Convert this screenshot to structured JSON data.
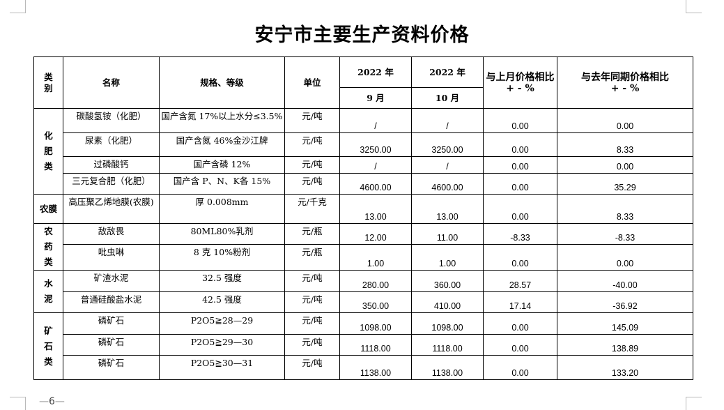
{
  "page_title": "安宁市主要生产资料价格",
  "page_number": "6",
  "headers": {
    "category": "类别",
    "name": "名称",
    "spec": "规格、等级",
    "unit": "单位",
    "year1": "2022 年",
    "year2": "2022 年",
    "month1": "9 月",
    "month2": "10 月",
    "mom_line1": "与上月价格相比",
    "mom_line2": "+ - %",
    "yoy_line1": "与去年同期价格相比",
    "yoy_line2": "+ - %"
  },
  "categories": [
    {
      "label": "化肥类",
      "rows": [
        {
          "name": "碳酸氢铵（化肥）",
          "spec": "国产含氮 17%以上水分≤3.5%",
          "unit": "元/吨",
          "sep": "/",
          "oct": "/",
          "mom": "0.00",
          "yoy": "0.00"
        },
        {
          "name": "尿素（化肥）",
          "spec": "国产含氮 46%金沙江牌",
          "unit": "元/吨",
          "sep": "3250.00",
          "oct": "3250.00",
          "mom": "0.00",
          "yoy": "8.33"
        },
        {
          "name": "过磷酸钙",
          "spec": "国产含磷 12%",
          "unit": "元/吨",
          "sep": "/",
          "oct": "/",
          "mom": "0.00",
          "yoy": "0.00"
        },
        {
          "name": "三元复合肥（化肥）",
          "spec": "国产含 P、N、K各 15%",
          "unit": "元/吨",
          "sep": "4600.00",
          "oct": "4600.00",
          "mom": "0.00",
          "yoy": "35.29"
        }
      ]
    },
    {
      "label": "农膜",
      "rows": [
        {
          "name": "高压聚乙烯地膜(农膜)",
          "spec": "厚 0.008mm",
          "unit": "元/千克",
          "sep": "13.00",
          "oct": "13.00",
          "mom": "0.00",
          "yoy": "8.33"
        }
      ]
    },
    {
      "label": "农药类",
      "rows": [
        {
          "name": "敌敌畏",
          "spec": "80ML80%乳剂",
          "unit": "元/瓶",
          "sep": "12.00",
          "oct": "11.00",
          "mom": "-8.33",
          "yoy": "-8.33"
        },
        {
          "name": "吡虫啉",
          "spec": "8 克 10%粉剂",
          "unit": "元/瓶",
          "sep": "1.00",
          "oct": "1.00",
          "mom": "0.00",
          "yoy": "0.00"
        }
      ]
    },
    {
      "label": "水泥",
      "rows": [
        {
          "name": "矿渣水泥",
          "spec": "32.5 强度",
          "unit": "元/吨",
          "sep": "280.00",
          "oct": "360.00",
          "mom": "28.57",
          "yoy": "-40.00"
        },
        {
          "name": "普通硅酸盐水泥",
          "spec": "42.5 强度",
          "unit": "元/吨",
          "sep": "350.00",
          "oct": "410.00",
          "mom": "17.14",
          "yoy": "-36.92"
        }
      ]
    },
    {
      "label": "矿石类",
      "rows": [
        {
          "name": "磷矿石",
          "spec": "P2O5≧28—29",
          "unit": "元/吨",
          "sep": "1098.00",
          "oct": "1098.00",
          "mom": "0.00",
          "yoy": "145.09"
        },
        {
          "name": "磷矿石",
          "spec": "P2O5≧29—30",
          "unit": "元/吨",
          "sep": "1118.00",
          "oct": "1118.00",
          "mom": "0.00",
          "yoy": "138.89"
        },
        {
          "name": "磷矿石",
          "spec": "P2O5≧30—31",
          "unit": "元/吨",
          "sep": "1138.00",
          "oct": "1138.00",
          "mom": "0.00",
          "yoy": "133.20"
        }
      ]
    }
  ]
}
